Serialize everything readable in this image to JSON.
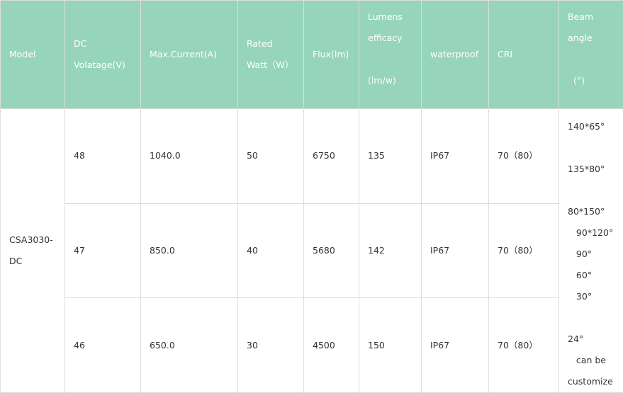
{
  "table": {
    "headers": [
      {
        "lines": [
          "Model"
        ]
      },
      {
        "lines": [
          "DC",
          "Volatage(V)"
        ]
      },
      {
        "lines": [
          "Max.Current(A)"
        ]
      },
      {
        "lines": [
          "Rated",
          "Watt（W）"
        ]
      },
      {
        "lines": [
          "Flux(lm)"
        ]
      },
      {
        "lines": [
          "Lumens",
          "efficacy",
          "",
          "(lm/w)"
        ]
      },
      {
        "lines": [
          "waterproof"
        ]
      },
      {
        "lines": [
          "CRI"
        ]
      },
      {
        "lines": [
          "Beam",
          "angle",
          "",
          "  (°)"
        ]
      }
    ],
    "model_lines": [
      "CSA3030-",
      "DC"
    ],
    "rows": [
      [
        "48",
        "1040.0",
        "50",
        "6750",
        "135",
        "IP67",
        "70（80）"
      ],
      [
        "47",
        "850.0",
        "40",
        "5680",
        "142",
        "IP67",
        "70（80）"
      ],
      [
        "46",
        "650.0",
        "30",
        "4500",
        "150",
        "IP67",
        "70（80）"
      ]
    ],
    "beam_lines": [
      "140*65°",
      "",
      "135*80°",
      "",
      "80*150°",
      "   90*120°",
      "   90°",
      "   60°",
      "   30°",
      "",
      "24°",
      "   can be",
      "customize"
    ]
  },
  "colors": {
    "header_bg": "#96d4bb",
    "header_text": "#ffffff",
    "border": "#dddddd"
  }
}
